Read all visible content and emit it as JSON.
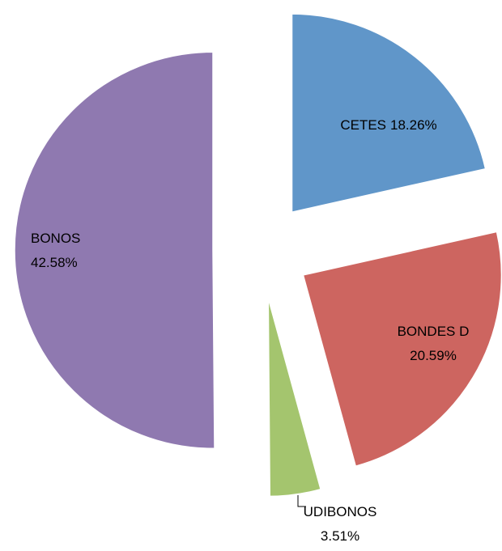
{
  "chart_data": {
    "type": "pie",
    "categories": [
      "CETES",
      "BONDES D",
      "UDIBONOS",
      "BONOS"
    ],
    "values": [
      18.26,
      20.59,
      3.51,
      42.58
    ],
    "value_labels": [
      "18.26%",
      "20.59%",
      "3.51%",
      "42.58%"
    ],
    "colors": [
      "#6096c9",
      "#cd6560",
      "#a4c56e",
      "#8f79b0"
    ]
  }
}
